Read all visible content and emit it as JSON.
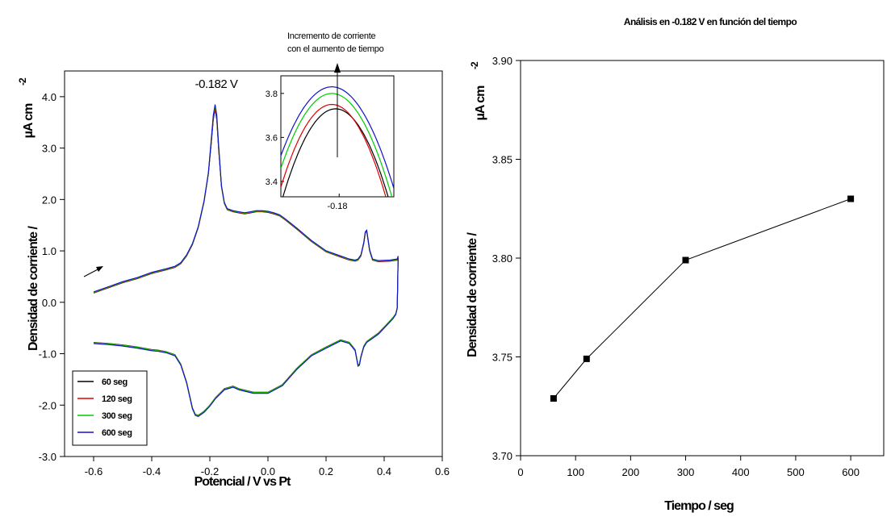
{
  "left_chart": {
    "xlabel": "Potencial / V vs Pt",
    "ylabel": "Densidad de corriente /",
    "ylabel_unit": "µA cm",
    "ylabel_exp": "-2",
    "peak_label": "-0.182 V",
    "inset_annotation_line1": "Incremento de corriente",
    "inset_annotation_line2": "con el aumento de tiempo",
    "inset_tick": "-0.18"
  },
  "right_chart": {
    "title": "Análisis en -0.182 V en función del tiempo",
    "xlabel": "Tiempo / seg",
    "ylabel": "Densidad de corriente /",
    "ylabel_unit": "µA cm",
    "ylabel_exp": "-2"
  },
  "chart_data": [
    {
      "type": "line",
      "xlabel": "Potencial / V vs Pt",
      "ylabel": "Densidad de corriente / µA cm-2",
      "xlim": [
        -0.7,
        0.6
      ],
      "ylim": [
        -3.0,
        4.5
      ],
      "xticks": [
        -0.6,
        -0.4,
        -0.2,
        0.0,
        0.2,
        0.4,
        0.6
      ],
      "xtick_labels": [
        "-0.6",
        "-0.4",
        "-0.2",
        "0.0",
        "0.2",
        "0.4",
        "0.6"
      ],
      "yticks": [
        -3.0,
        -2.0,
        -1.0,
        0.0,
        1.0,
        2.0,
        3.0,
        4.0
      ],
      "ytick_labels": [
        "-3.0",
        "-2.0",
        "-1.0",
        "0.0",
        "1.0",
        "2.0",
        "3.0",
        "4.0"
      ],
      "legend_position": "lower-left",
      "annotations": [
        "-0.182 V"
      ],
      "forward_scan": {
        "x": [
          -0.6,
          -0.55,
          -0.5,
          -0.45,
          -0.4,
          -0.35,
          -0.32,
          -0.3,
          -0.28,
          -0.26,
          -0.24,
          -0.22,
          -0.205,
          -0.195,
          -0.188,
          -0.182,
          -0.176,
          -0.17,
          -0.16,
          -0.15,
          -0.14,
          -0.12,
          -0.1,
          -0.08,
          -0.06,
          -0.04,
          -0.02,
          0.0,
          0.02,
          0.04,
          0.06,
          0.1,
          0.15,
          0.2,
          0.25,
          0.28,
          0.3,
          0.31,
          0.32,
          0.33,
          0.335,
          0.34,
          0.35,
          0.36,
          0.38,
          0.42,
          0.445,
          0.448
        ],
        "y": [
          0.18,
          0.28,
          0.38,
          0.46,
          0.56,
          0.63,
          0.68,
          0.75,
          0.9,
          1.12,
          1.45,
          1.95,
          2.5,
          3.1,
          3.55,
          3.75,
          3.55,
          3.0,
          2.25,
          1.92,
          1.8,
          1.76,
          1.74,
          1.72,
          1.74,
          1.76,
          1.76,
          1.75,
          1.72,
          1.68,
          1.6,
          1.42,
          1.18,
          0.98,
          0.88,
          0.82,
          0.8,
          0.82,
          0.9,
          1.15,
          1.35,
          1.38,
          1.0,
          0.82,
          0.79,
          0.8,
          0.82,
          0.88
        ]
      },
      "reverse_scan": {
        "x": [
          0.448,
          0.445,
          0.44,
          0.43,
          0.41,
          0.38,
          0.35,
          0.34,
          0.33,
          0.32,
          0.315,
          0.31,
          0.3,
          0.28,
          0.25,
          0.2,
          0.15,
          0.1,
          0.05,
          0.0,
          -0.05,
          -0.1,
          -0.12,
          -0.15,
          -0.18,
          -0.2,
          -0.22,
          -0.24,
          -0.25,
          -0.26,
          -0.28,
          -0.3,
          -0.32,
          -0.35,
          -0.38,
          -0.4,
          -0.45,
          -0.5,
          -0.55,
          -0.6
        ],
        "y": [
          0.88,
          -0.1,
          -0.22,
          -0.3,
          -0.42,
          -0.6,
          -0.72,
          -0.76,
          -0.85,
          -1.05,
          -1.2,
          -1.22,
          -0.92,
          -0.78,
          -0.73,
          -0.87,
          -1.02,
          -1.28,
          -1.6,
          -1.75,
          -1.75,
          -1.68,
          -1.63,
          -1.68,
          -1.85,
          -2.0,
          -2.12,
          -2.2,
          -2.18,
          -2.05,
          -1.55,
          -1.2,
          -1.02,
          -0.96,
          -0.93,
          -0.92,
          -0.87,
          -0.83,
          -0.8,
          -0.78
        ]
      },
      "series": [
        {
          "name": "60 seg",
          "color": "#000000",
          "peak_scale": 1.0,
          "offset": 0.0
        },
        {
          "name": "120 seg",
          "color": "#e00000",
          "peak_scale": 1.004,
          "offset": 0.004
        },
        {
          "name": "300 seg",
          "color": "#00cc00",
          "peak_scale": 1.018,
          "offset": 0.012
        },
        {
          "name": "600 seg",
          "color": "#1010cc",
          "peak_scale": 1.026,
          "offset": 0.022
        }
      ],
      "inset": {
        "xlim": [
          -0.196,
          -0.165
        ],
        "ylim": [
          3.33,
          3.88
        ],
        "yticks": [
          3.4,
          3.6,
          3.8
        ],
        "ytick_labels": [
          "3.4",
          "3.6",
          "3.8"
        ],
        "xticks": [
          -0.18
        ],
        "xtick_labels": [
          "-0.18"
        ],
        "peaks": [
          {
            "name": "60 seg",
            "color": "#000000",
            "x": -0.181,
            "y": 3.73,
            "width": 0.0135
          },
          {
            "name": "120 seg",
            "color": "#e00000",
            "x": -0.182,
            "y": 3.75,
            "width": 0.0135
          },
          {
            "name": "300 seg",
            "color": "#00cc00",
            "x": -0.182,
            "y": 3.8,
            "width": 0.0142
          },
          {
            "name": "600 seg",
            "color": "#1010cc",
            "x": -0.182,
            "y": 3.83,
            "width": 0.0148
          }
        ]
      }
    },
    {
      "type": "line",
      "title": "Análisis en -0.182 V en función del tiempo",
      "xlabel": "Tiempo / seg",
      "ylabel": "Densidad de corriente / µA cm-2",
      "xlim": [
        0,
        660
      ],
      "ylim": [
        3.7,
        3.9
      ],
      "xticks": [
        0,
        100,
        200,
        300,
        400,
        500,
        600
      ],
      "xtick_labels": [
        "0",
        "100",
        "200",
        "300",
        "400",
        "500",
        "600"
      ],
      "yticks": [
        3.7,
        3.75,
        3.8,
        3.85,
        3.9
      ],
      "ytick_labels": [
        "3.70",
        "3.75",
        "3.80",
        "3.85",
        "3.90"
      ],
      "x": [
        60,
        120,
        300,
        600
      ],
      "y": [
        3.729,
        3.749,
        3.799,
        3.83
      ]
    }
  ]
}
